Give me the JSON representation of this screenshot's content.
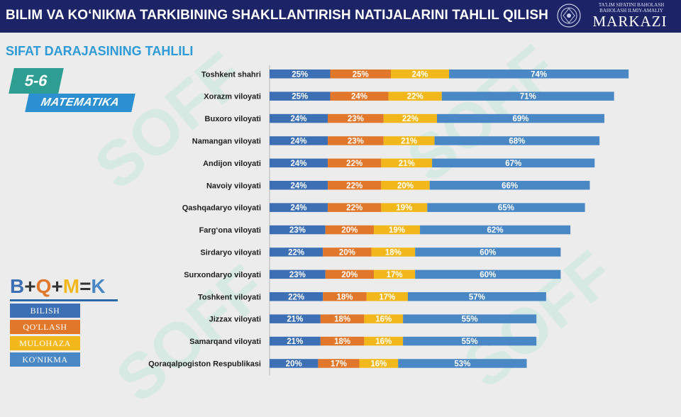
{
  "header": {
    "title": "BILIM VA KO‘NIKMA TARKIBINING SHAKLLANTIRISH NATIJALARINI TAHLIL QILISH",
    "logo_small_line1": "TA'LIM SIFATINI BAHOLASH",
    "logo_small_line2": "BAHOLASH ILMIY-AMALIY",
    "logo_big": "MARKAZI"
  },
  "subtitle": "SIFAT DARAJASINING TAHLILI",
  "grade": "5-6",
  "subject": "MATEMATIKA",
  "formula": {
    "b": "B",
    "plus1": "+",
    "q": "Q",
    "plus2": "+",
    "m": "M",
    "eq": "=",
    "k": "K"
  },
  "legend": [
    {
      "label": "BILISH",
      "color": "#3c6fb4"
    },
    {
      "label": "QO'LLASH",
      "color": "#e0772b"
    },
    {
      "label": "MULOHAZA",
      "color": "#f2b81b"
    },
    {
      "label": "KO'NIKMA",
      "color": "#4a87c5"
    }
  ],
  "chart_data": {
    "type": "bar",
    "orientation": "horizontal",
    "stacked": true,
    "categories": [
      "Toshkent shahri",
      "Xorazm viloyati",
      "Buxoro viloyati",
      "Namangan viloyati",
      "Andijon viloyati",
      "Navoiy viloyati",
      "Qashqadaryo viloyati",
      "Farg‘ona viloyati",
      "Sirdaryo viloyati",
      "Surxondaryo viloyati",
      "Toshkent viloyati",
      "Jizzax viloyati",
      "Samarqand viloyati",
      "Qoraqalpogiston Respublikasi"
    ],
    "series": [
      {
        "name": "BILISH",
        "color": "#3c6fb4",
        "values": [
          25,
          25,
          24,
          24,
          24,
          24,
          24,
          23,
          22,
          23,
          22,
          21,
          21,
          20
        ]
      },
      {
        "name": "QO'LLASH",
        "color": "#e0772b",
        "values": [
          25,
          24,
          23,
          23,
          22,
          22,
          22,
          20,
          20,
          20,
          18,
          18,
          18,
          17
        ]
      },
      {
        "name": "MULOHAZA",
        "color": "#f2b81b",
        "values": [
          24,
          22,
          22,
          21,
          21,
          20,
          19,
          19,
          18,
          17,
          17,
          16,
          16,
          16
        ]
      },
      {
        "name": "KO'NIKMA",
        "color": "#4a87c5",
        "values": [
          74,
          71,
          69,
          68,
          67,
          66,
          65,
          62,
          60,
          60,
          57,
          55,
          55,
          53
        ]
      }
    ],
    "value_suffix": "%",
    "grid": false,
    "legend_position": "bottom-left"
  }
}
